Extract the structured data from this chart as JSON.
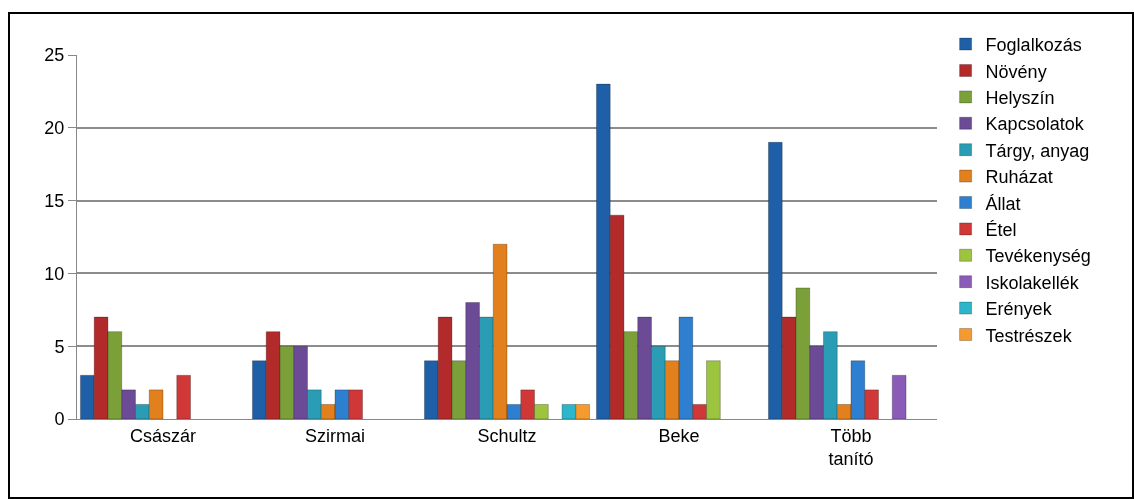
{
  "chart_data": {
    "type": "bar",
    "categories": [
      "Császár",
      "Szirmai",
      "Schultz",
      "Beke",
      "Több tanító"
    ],
    "series": [
      {
        "name": "Foglalkozás",
        "color": "#1f5fa8",
        "values": [
          3,
          4,
          4,
          23,
          19
        ]
      },
      {
        "name": "Növény",
        "color": "#b22a2a",
        "values": [
          7,
          6,
          7,
          14,
          7
        ]
      },
      {
        "name": "Helyszín",
        "color": "#7ba03a",
        "values": [
          6,
          5,
          4,
          6,
          9
        ]
      },
      {
        "name": "Kapcsolatok",
        "color": "#6b4a96",
        "values": [
          2,
          5,
          8,
          7,
          5
        ]
      },
      {
        "name": "Tárgy, anyag",
        "color": "#2a9cb4",
        "values": [
          1,
          2,
          7,
          5,
          6
        ]
      },
      {
        "name": "Ruházat",
        "color": "#e2801e",
        "values": [
          2,
          1,
          12,
          4,
          1
        ]
      },
      {
        "name": "Állat",
        "color": "#2e7fd0",
        "values": [
          null,
          2,
          1,
          7,
          4
        ]
      },
      {
        "name": "Étel",
        "color": "#d03838",
        "values": [
          3,
          2,
          2,
          1,
          2
        ]
      },
      {
        "name": "Tevékenység",
        "color": "#9cc43e",
        "values": [
          null,
          null,
          1,
          4,
          null
        ]
      },
      {
        "name": "Iskolakellék",
        "color": "#8a5cb8",
        "values": [
          null,
          null,
          null,
          null,
          3
        ]
      },
      {
        "name": "Erények",
        "color": "#2cb6cc",
        "values": [
          null,
          null,
          1,
          null,
          null
        ]
      },
      {
        "name": "Testrészek",
        "color": "#f59a2e",
        "values": [
          null,
          null,
          1,
          null,
          null
        ]
      }
    ],
    "ylim": [
      0,
      25
    ],
    "yticks": [
      0,
      5,
      10,
      15,
      20,
      25
    ],
    "grid": "y",
    "legend": "right"
  }
}
